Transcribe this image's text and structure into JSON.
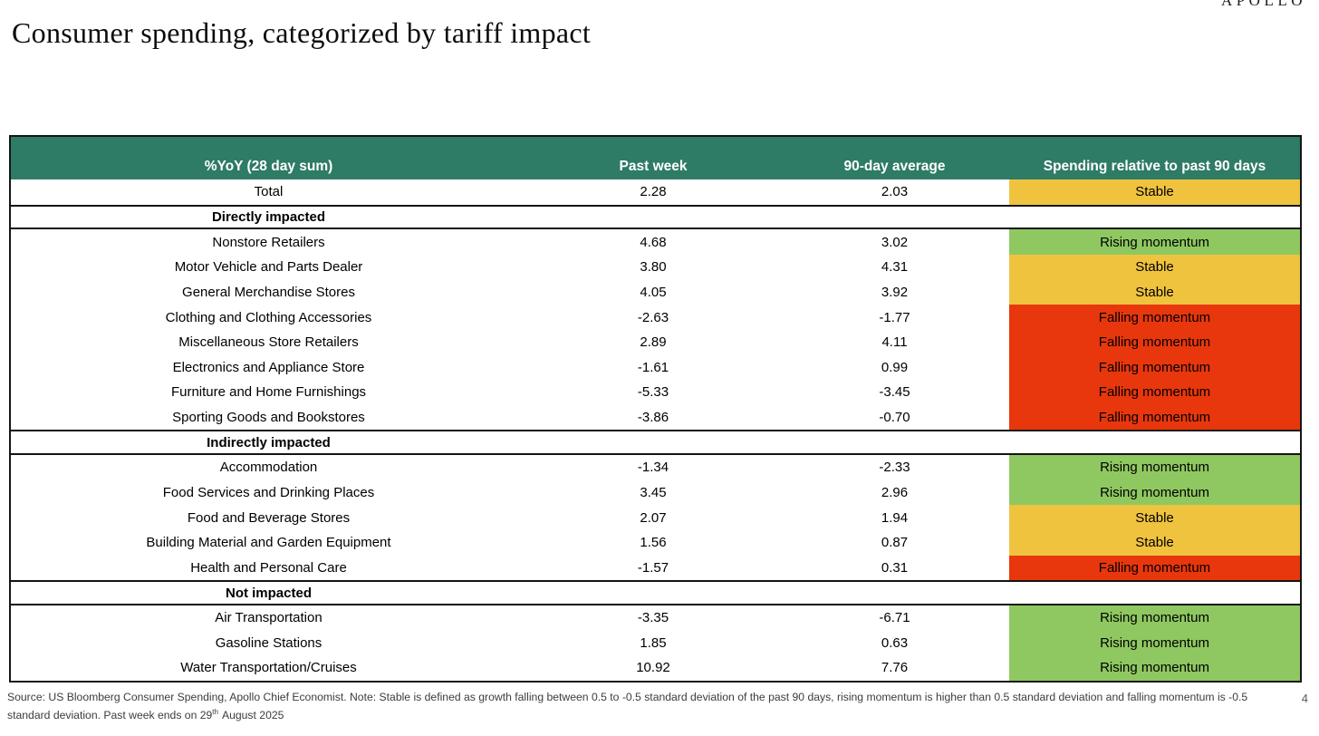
{
  "brand": "APOLLO",
  "title": "Consumer spending, categorized by tariff impact",
  "page_number": "4",
  "colors": {
    "header_bg": "#2E7B66",
    "stable": "#F0C33F",
    "rising": "#8FC861",
    "falling": "#E8370D",
    "cell_text": "#000000"
  },
  "table": {
    "columns": [
      "%YoY (28 day sum)",
      "Past week",
      "90-day average",
      "Spending relative to past 90 days"
    ],
    "rows": [
      {
        "type": "data",
        "label": "Total",
        "past_week": "2.28",
        "avg_90": "2.03",
        "status": "Stable",
        "status_kind": "stable"
      },
      {
        "type": "section",
        "label": "Directly impacted"
      },
      {
        "type": "data",
        "label": "Nonstore Retailers",
        "past_week": "4.68",
        "avg_90": "3.02",
        "status": "Rising momentum",
        "status_kind": "rising"
      },
      {
        "type": "data",
        "label": "Motor Vehicle and Parts Dealer",
        "past_week": "3.80",
        "avg_90": "4.31",
        "status": "Stable",
        "status_kind": "stable"
      },
      {
        "type": "data",
        "label": "General Merchandise Stores",
        "past_week": "4.05",
        "avg_90": "3.92",
        "status": "Stable",
        "status_kind": "stable"
      },
      {
        "type": "data",
        "label": "Clothing and Clothing Accessories",
        "past_week": "-2.63",
        "avg_90": "-1.77",
        "status": "Falling momentum",
        "status_kind": "falling"
      },
      {
        "type": "data",
        "label": "Miscellaneous Store Retailers",
        "past_week": "2.89",
        "avg_90": "4.11",
        "status": "Falling momentum",
        "status_kind": "falling"
      },
      {
        "type": "data",
        "label": "Electronics and Appliance Store",
        "past_week": "-1.61",
        "avg_90": "0.99",
        "status": "Falling momentum",
        "status_kind": "falling"
      },
      {
        "type": "data",
        "label": "Furniture and Home Furnishings",
        "past_week": "-5.33",
        "avg_90": "-3.45",
        "status": "Falling momentum",
        "status_kind": "falling"
      },
      {
        "type": "data",
        "label": "Sporting Goods and Bookstores",
        "past_week": "-3.86",
        "avg_90": "-0.70",
        "status": "Falling momentum",
        "status_kind": "falling"
      },
      {
        "type": "section",
        "label": "Indirectly impacted"
      },
      {
        "type": "data",
        "label": "Accommodation",
        "past_week": "-1.34",
        "avg_90": "-2.33",
        "status": "Rising momentum",
        "status_kind": "rising"
      },
      {
        "type": "data",
        "label": "Food Services and Drinking Places",
        "past_week": "3.45",
        "avg_90": "2.96",
        "status": "Rising momentum",
        "status_kind": "rising"
      },
      {
        "type": "data",
        "label": "Food and Beverage Stores",
        "past_week": "2.07",
        "avg_90": "1.94",
        "status": "Stable",
        "status_kind": "stable"
      },
      {
        "type": "data",
        "label": "Building Material and Garden Equipment",
        "past_week": "1.56",
        "avg_90": "0.87",
        "status": "Stable",
        "status_kind": "stable"
      },
      {
        "type": "data",
        "label": "Health and Personal Care",
        "past_week": "-1.57",
        "avg_90": "0.31",
        "status": "Falling momentum",
        "status_kind": "falling"
      },
      {
        "type": "section",
        "label": "Not impacted"
      },
      {
        "type": "data",
        "label": "Air Transportation",
        "past_week": "-3.35",
        "avg_90": "-6.71",
        "status": "Rising momentum",
        "status_kind": "rising"
      },
      {
        "type": "data",
        "label": "Gasoline Stations",
        "past_week": "1.85",
        "avg_90": "0.63",
        "status": "Rising momentum",
        "status_kind": "rising"
      },
      {
        "type": "data",
        "label": "Water Transportation/Cruises",
        "past_week": "10.92",
        "avg_90": "7.76",
        "status": "Rising momentum",
        "status_kind": "rising"
      }
    ]
  },
  "chart_data": {
    "type": "table",
    "title": "Consumer spending, categorized by tariff impact",
    "columns": [
      "%YoY (28 day sum)",
      "Past week",
      "90-day average",
      "Spending relative to past 90 days"
    ],
    "sections": [
      {
        "name": null,
        "rows": [
          [
            "Total",
            2.28,
            2.03,
            "Stable"
          ]
        ]
      },
      {
        "name": "Directly impacted",
        "rows": [
          [
            "Nonstore Retailers",
            4.68,
            3.02,
            "Rising momentum"
          ],
          [
            "Motor Vehicle and Parts Dealer",
            3.8,
            4.31,
            "Stable"
          ],
          [
            "General Merchandise Stores",
            4.05,
            3.92,
            "Stable"
          ],
          [
            "Clothing and Clothing Accessories",
            -2.63,
            -1.77,
            "Falling momentum"
          ],
          [
            "Miscellaneous Store Retailers",
            2.89,
            4.11,
            "Falling momentum"
          ],
          [
            "Electronics and Appliance Store",
            -1.61,
            0.99,
            "Falling momentum"
          ],
          [
            "Furniture and Home Furnishings",
            -5.33,
            -3.45,
            "Falling momentum"
          ],
          [
            "Sporting Goods and Bookstores",
            -3.86,
            -0.7,
            "Falling momentum"
          ]
        ]
      },
      {
        "name": "Indirectly impacted",
        "rows": [
          [
            "Accommodation",
            -1.34,
            -2.33,
            "Rising momentum"
          ],
          [
            "Food Services and Drinking Places",
            3.45,
            2.96,
            "Rising momentum"
          ],
          [
            "Food and Beverage Stores",
            2.07,
            1.94,
            "Stable"
          ],
          [
            "Building Material and Garden Equipment",
            1.56,
            0.87,
            "Stable"
          ],
          [
            "Health and Personal Care",
            -1.57,
            0.31,
            "Falling momentum"
          ]
        ]
      },
      {
        "name": "Not impacted",
        "rows": [
          [
            "Air Transportation",
            -3.35,
            -6.71,
            "Rising momentum"
          ],
          [
            "Gasoline Stations",
            1.85,
            0.63,
            "Rising momentum"
          ],
          [
            "Water Transportation/Cruises",
            10.92,
            7.76,
            "Rising momentum"
          ]
        ]
      }
    ]
  },
  "footer": {
    "line1": "Source: US Bloomberg Consumer Spending, Apollo Chief Economist. Note: Stable is defined as growth falling between 0.5 to -0.5 standard deviation of the past 90 days, rising momentum is higher than 0.5 standard deviation and falling momentum is -0.5",
    "line2_pre": "standard deviation. Past week ends on 29",
    "line2_sup": "th",
    "line2_post": "August 2025"
  }
}
